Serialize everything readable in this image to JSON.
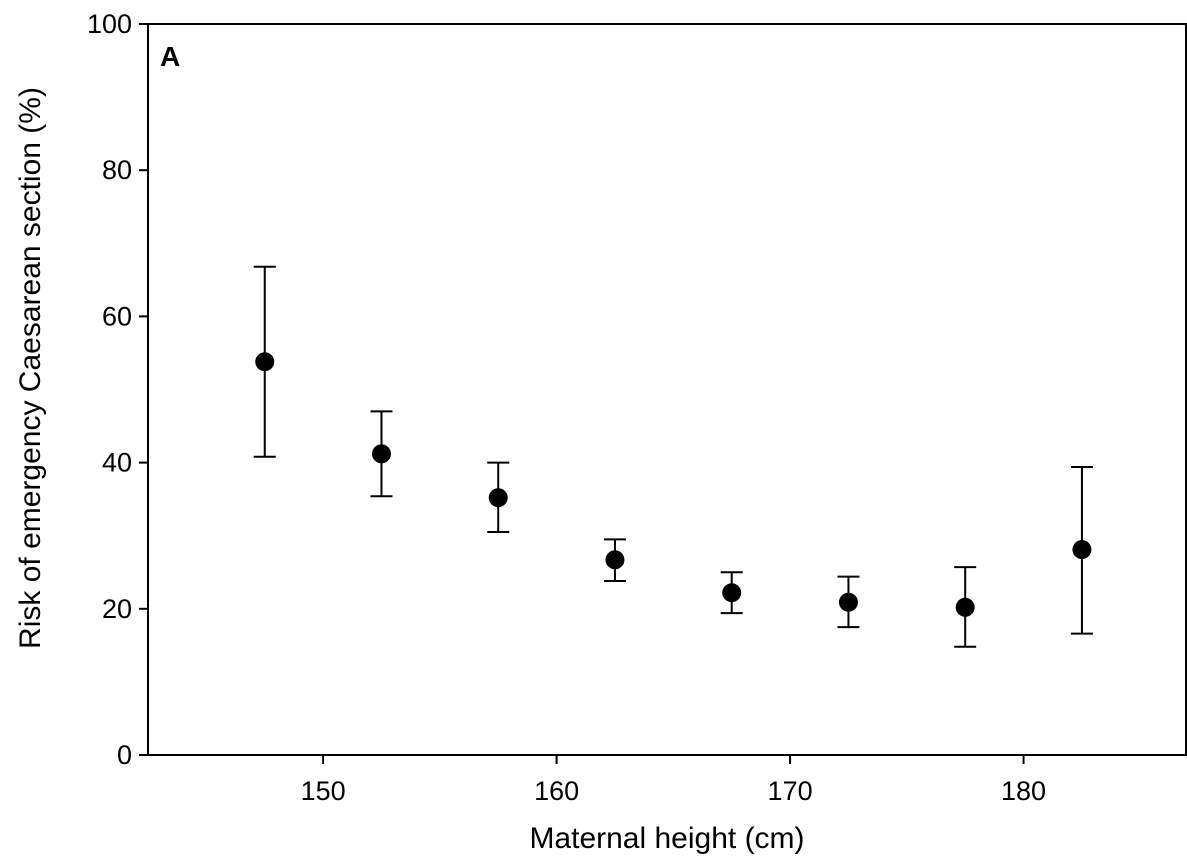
{
  "chart_data": {
    "type": "scatter",
    "panel_label": "A",
    "xlabel": "Maternal height (cm)",
    "ylabel": "Risk of emergency Caesarean section (%)",
    "xlim": [
      142.5,
      187
    ],
    "ylim": [
      0,
      100
    ],
    "x_ticks": [
      150,
      160,
      170,
      180
    ],
    "y_ticks": [
      0,
      20,
      40,
      60,
      80,
      100
    ],
    "grid": false,
    "legend": "none",
    "marker_color": "#000000",
    "points": [
      {
        "x": 147.5,
        "y": 53.8,
        "lower": 40.8,
        "upper": 66.8
      },
      {
        "x": 152.5,
        "y": 41.2,
        "lower": 35.4,
        "upper": 47.0
      },
      {
        "x": 157.5,
        "y": 35.2,
        "lower": 30.5,
        "upper": 40.0
      },
      {
        "x": 162.5,
        "y": 26.7,
        "lower": 23.8,
        "upper": 29.5
      },
      {
        "x": 167.5,
        "y": 22.2,
        "lower": 19.4,
        "upper": 25.0
      },
      {
        "x": 172.5,
        "y": 20.9,
        "lower": 17.5,
        "upper": 24.4
      },
      {
        "x": 177.5,
        "y": 20.2,
        "lower": 14.8,
        "upper": 25.7
      },
      {
        "x": 182.5,
        "y": 28.1,
        "lower": 16.6,
        "upper": 39.4
      }
    ]
  }
}
